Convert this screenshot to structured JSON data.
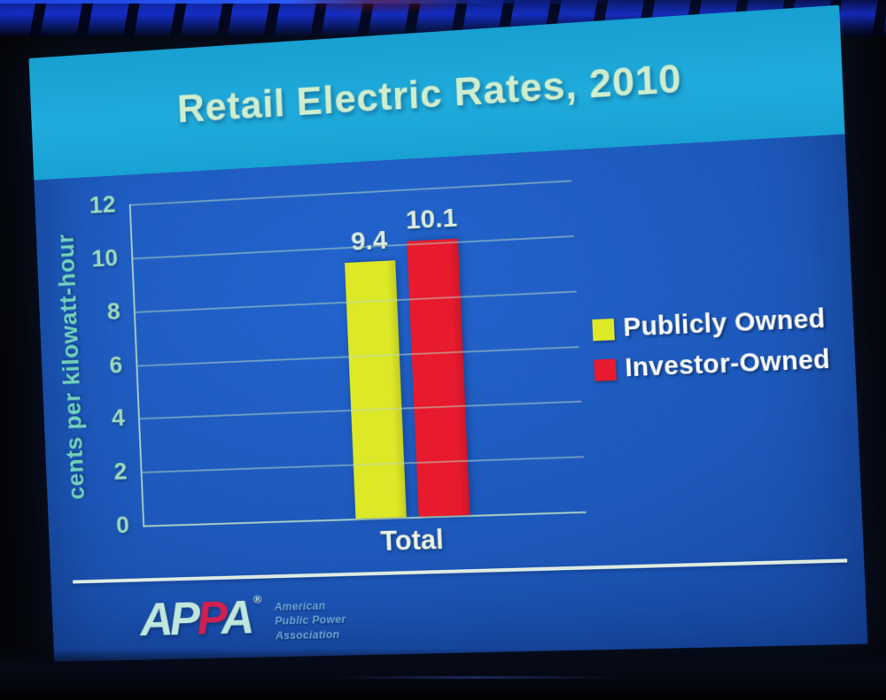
{
  "slide": {
    "title": "Retail Electric Rates, 2010",
    "colors": {
      "header_bg": "#1fa9d8",
      "body_bg": "#1d58ba",
      "title_text": "#cfeecf",
      "axis_text": "#9edabd",
      "y_title_text": "#74d3bd",
      "gridline": "#b9d8c4",
      "data_label_text": "#dceedd",
      "category_text": "#eef4e2",
      "legend_text": "#ffffff",
      "divider": "#eaf5e6",
      "logo_letter": "#bfe7dc",
      "logo_letter_accent": "#d02050",
      "org_text": "#6ca8dc"
    },
    "footer": {
      "logo_letters": [
        {
          "ch": "A",
          "accent": false
        },
        {
          "ch": "P",
          "accent": false
        },
        {
          "ch": "P",
          "accent": true
        },
        {
          "ch": "A",
          "accent": false
        }
      ],
      "registered_mark": "®",
      "org_lines": [
        "American",
        "Public Power",
        "Association"
      ]
    }
  },
  "chart_data": {
    "type": "bar",
    "title": "Retail Electric Rates, 2010",
    "categories": [
      "Total"
    ],
    "series": [
      {
        "name": "Publicly Owned",
        "values": [
          9.4
        ],
        "color": "#dde827"
      },
      {
        "name": "Investor-Owned",
        "values": [
          10.1
        ],
        "color": "#e81a2e"
      }
    ],
    "data_labels": [
      "9.4",
      "10.1"
    ],
    "ylabel": "cents per kilowatt-hour",
    "xlabel": "",
    "ylim": [
      0,
      12
    ],
    "yticks": [
      12,
      10,
      8,
      6,
      4,
      2,
      0
    ],
    "grid": true,
    "legend_position": "right"
  }
}
